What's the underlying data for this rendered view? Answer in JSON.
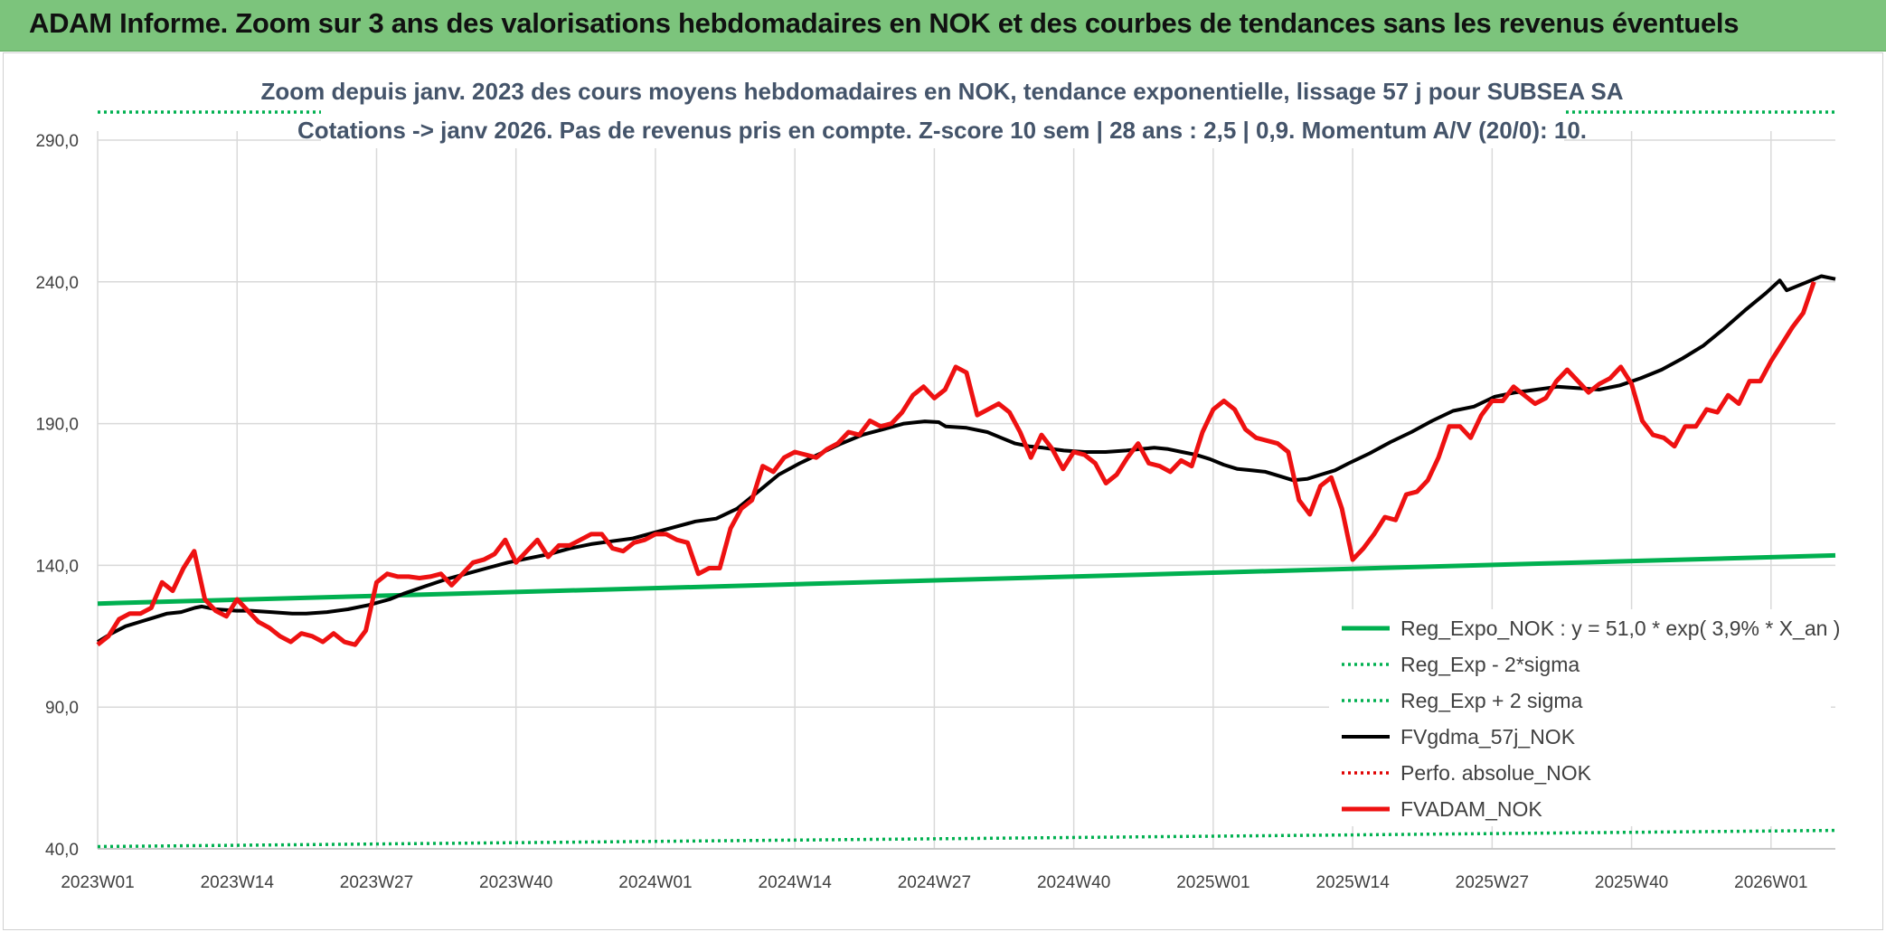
{
  "header": {
    "title": "ADAM Informe. Zoom sur 3 ans des valorisations hebdomadaires en NOK et des courbes de tendances sans les revenus éventuels"
  },
  "chart_data": {
    "type": "line",
    "title_line1": "Zoom depuis janv. 2023 des cours moyens hebdomadaires en NOK, tendance exponentielle, lissage 57 j pour SUBSEA SA",
    "title_line2": "Cotations -> janv 2026. Pas de revenus pris en compte. Z-score 10 sem | 28 ans : 2,5 | 0,9. Momentum A/V (20/0): 10.",
    "ylim": [
      40,
      290
    ],
    "yticks": [
      "290,0",
      "240,0",
      "190,0",
      "140,0",
      "90,0",
      "40,0"
    ],
    "ytick_values": [
      290,
      240,
      190,
      140,
      90,
      40
    ],
    "xticks": [
      "2023W01",
      "2023W14",
      "2023W27",
      "2023W40",
      "2024W01",
      "2024W14",
      "2024W27",
      "2024W40",
      "2025W01",
      "2025W14",
      "2025W27",
      "2025W40",
      "2026W01"
    ],
    "x_count": 163,
    "grid": true,
    "legend_position": "bottom-right",
    "series": [
      {
        "name": "Reg_Expo_NOK : y = 51,0 * exp( 3,9% *  X_an )",
        "color": "#00b050",
        "style": "solid-thick",
        "points": [
          [
            0,
            126.5
          ],
          [
            162,
            143.5
          ]
        ]
      },
      {
        "name": "Reg_Exp - 2*sigma",
        "color": "#00b050",
        "style": "dotted",
        "points": [
          [
            0,
            40.8
          ],
          [
            162,
            46.5
          ]
        ]
      },
      {
        "name": "Reg_Exp + 2 sigma",
        "color": "#00b050",
        "style": "dotted",
        "points": [
          [
            0,
            300
          ],
          [
            162,
            300
          ]
        ]
      },
      {
        "name": "FVgdma_57j_NOK",
        "color": "#000000",
        "style": "solid",
        "points": [
          [
            0,
            113
          ],
          [
            2,
            116
          ],
          [
            4,
            118.5
          ],
          [
            6,
            120
          ],
          [
            8,
            121.5
          ],
          [
            10,
            123
          ],
          [
            12,
            123.5
          ],
          [
            14,
            125
          ],
          [
            15,
            125.5
          ],
          [
            17,
            124.5
          ],
          [
            20,
            124
          ],
          [
            22,
            124
          ],
          [
            25,
            123.5
          ],
          [
            28,
            123
          ],
          [
            30,
            123
          ],
          [
            33,
            123.5
          ],
          [
            36,
            124.5
          ],
          [
            39,
            126
          ],
          [
            42,
            128
          ],
          [
            44,
            130
          ],
          [
            47,
            132.5
          ],
          [
            50,
            135
          ],
          [
            53,
            137
          ],
          [
            56,
            139
          ],
          [
            59,
            141
          ],
          [
            62,
            142.5
          ],
          [
            65,
            144
          ],
          [
            68,
            146
          ],
          [
            71,
            147.5
          ],
          [
            74,
            148.5
          ],
          [
            77,
            149.5
          ],
          [
            80,
            151.5
          ],
          [
            83,
            153.5
          ],
          [
            86,
            155.5
          ],
          [
            89,
            156.5
          ],
          [
            92,
            160
          ],
          [
            95,
            166
          ],
          [
            98,
            172
          ],
          [
            101,
            176
          ],
          [
            104,
            179.5
          ],
          [
            107,
            183
          ],
          [
            110,
            186
          ],
          [
            113,
            188
          ],
          [
            116,
            190
          ],
          [
            119,
            190.8
          ],
          [
            121,
            190.5
          ],
          [
            122,
            189
          ],
          [
            125,
            188.5
          ],
          [
            128,
            187
          ],
          [
            130,
            185
          ],
          [
            132,
            183
          ],
          [
            134,
            182
          ],
          [
            136,
            181.5
          ],
          [
            139,
            180.5
          ],
          [
            142,
            180
          ],
          [
            145,
            180
          ],
          [
            148,
            180.5
          ],
          [
            150,
            181
          ],
          [
            152,
            181.5
          ],
          [
            154,
            181
          ],
          [
            156,
            180
          ],
          [
            158,
            179
          ],
          [
            160,
            177.5
          ],
          [
            162,
            175.5
          ],
          [
            164,
            174
          ],
          [
            166,
            173.5
          ],
          [
            168,
            173
          ],
          [
            170,
            171.5
          ],
          [
            172,
            170
          ],
          [
            174,
            170.5
          ],
          [
            176,
            172
          ],
          [
            178,
            173.5
          ],
          [
            180,
            176
          ],
          [
            183,
            179.5
          ],
          [
            186,
            183.5
          ],
          [
            189,
            187
          ],
          [
            192,
            191
          ],
          [
            195,
            194.5
          ],
          [
            198,
            196
          ],
          [
            201,
            199.5
          ],
          [
            204,
            201
          ],
          [
            207,
            202
          ],
          [
            210,
            203
          ],
          [
            213,
            202.5
          ],
          [
            216,
            202
          ],
          [
            219,
            203.5
          ],
          [
            222,
            206
          ],
          [
            225,
            209
          ],
          [
            228,
            213
          ],
          [
            231,
            217.5
          ],
          [
            234,
            223.5
          ],
          [
            237,
            230
          ],
          [
            240,
            236
          ],
          [
            242,
            240.5
          ],
          [
            243,
            237
          ],
          [
            246,
            240
          ],
          [
            248,
            242
          ],
          [
            250,
            241
          ]
        ]
      },
      {
        "name": "Perfo. absolue_NOK",
        "color": "#e00000",
        "style": "dotted",
        "points": []
      },
      {
        "name": "FVADAM_NOK",
        "color": "#ee1111",
        "style": "solid-thick",
        "points": [
          [
            0,
            112
          ],
          [
            1,
            115
          ],
          [
            2,
            121
          ],
          [
            3,
            123
          ],
          [
            4,
            123
          ],
          [
            5,
            125
          ],
          [
            6,
            134
          ],
          [
            7,
            131
          ],
          [
            8,
            139
          ],
          [
            9,
            145
          ],
          [
            10,
            128
          ],
          [
            11,
            124
          ],
          [
            12,
            122
          ],
          [
            13,
            128
          ],
          [
            14,
            124
          ],
          [
            15,
            120
          ],
          [
            16,
            118
          ],
          [
            17,
            115
          ],
          [
            18,
            113
          ],
          [
            19,
            116
          ],
          [
            20,
            115
          ],
          [
            21,
            113
          ],
          [
            22,
            116
          ],
          [
            23,
            113
          ],
          [
            24,
            112
          ],
          [
            25,
            117
          ],
          [
            26,
            134
          ],
          [
            27,
            137
          ],
          [
            28,
            136
          ],
          [
            29,
            136
          ],
          [
            30,
            135.5
          ],
          [
            31,
            136
          ],
          [
            32,
            137
          ],
          [
            33,
            133
          ],
          [
            34,
            137
          ],
          [
            35,
            141
          ],
          [
            36,
            142
          ],
          [
            37,
            144
          ],
          [
            38,
            149
          ],
          [
            39,
            141
          ],
          [
            40,
            145
          ],
          [
            41,
            149
          ],
          [
            42,
            143
          ],
          [
            43,
            147
          ],
          [
            44,
            147
          ],
          [
            45,
            149
          ],
          [
            46,
            151
          ],
          [
            47,
            151
          ],
          [
            48,
            146
          ],
          [
            49,
            145
          ],
          [
            50,
            148
          ],
          [
            51,
            149
          ],
          [
            52,
            151
          ],
          [
            53,
            151
          ],
          [
            54,
            149
          ],
          [
            55,
            148
          ],
          [
            56,
            137
          ],
          [
            57,
            139
          ],
          [
            58,
            139
          ],
          [
            59,
            153
          ],
          [
            60,
            160
          ],
          [
            61,
            163
          ],
          [
            62,
            175
          ],
          [
            63,
            173
          ],
          [
            64,
            178
          ],
          [
            65,
            180
          ],
          [
            66,
            179
          ],
          [
            67,
            178
          ],
          [
            68,
            181
          ],
          [
            69,
            183
          ],
          [
            70,
            187
          ],
          [
            71,
            186
          ],
          [
            72,
            191
          ],
          [
            73,
            189
          ],
          [
            74,
            190
          ],
          [
            75,
            194
          ],
          [
            76,
            200
          ],
          [
            77,
            203
          ],
          [
            78,
            199
          ],
          [
            79,
            202
          ],
          [
            80,
            210
          ],
          [
            81,
            208
          ],
          [
            82,
            193
          ],
          [
            83,
            195
          ],
          [
            84,
            197
          ],
          [
            85,
            194
          ],
          [
            86,
            187
          ],
          [
            87,
            178
          ],
          [
            88,
            186
          ],
          [
            89,
            181
          ],
          [
            90,
            174
          ],
          [
            91,
            180
          ],
          [
            92,
            179
          ],
          [
            93,
            176
          ],
          [
            94,
            169
          ],
          [
            95,
            172
          ],
          [
            96,
            178
          ],
          [
            97,
            183
          ],
          [
            98,
            176
          ],
          [
            99,
            175
          ],
          [
            100,
            173
          ],
          [
            101,
            177
          ],
          [
            102,
            175
          ],
          [
            103,
            187
          ],
          [
            104,
            195
          ],
          [
            105,
            198
          ],
          [
            106,
            195
          ],
          [
            107,
            188
          ],
          [
            108,
            185
          ],
          [
            109,
            184
          ],
          [
            110,
            183
          ],
          [
            111,
            180
          ],
          [
            112,
            163
          ],
          [
            113,
            158
          ],
          [
            114,
            168
          ],
          [
            115,
            171
          ],
          [
            116,
            160
          ],
          [
            117,
            142
          ],
          [
            118,
            146
          ],
          [
            119,
            151
          ],
          [
            120,
            157
          ],
          [
            121,
            156
          ],
          [
            122,
            165
          ],
          [
            123,
            166
          ],
          [
            124,
            170
          ],
          [
            125,
            178
          ],
          [
            126,
            189
          ],
          [
            127,
            189
          ],
          [
            128,
            185
          ],
          [
            129,
            193
          ],
          [
            130,
            198
          ],
          [
            131,
            198
          ],
          [
            132,
            203
          ],
          [
            133,
            200
          ],
          [
            134,
            197
          ],
          [
            135,
            199
          ],
          [
            136,
            205
          ],
          [
            137,
            209
          ],
          [
            138,
            205
          ],
          [
            139,
            201
          ],
          [
            140,
            204
          ],
          [
            141,
            206
          ],
          [
            142,
            210
          ],
          [
            143,
            204
          ],
          [
            144,
            191
          ],
          [
            145,
            186
          ],
          [
            146,
            185
          ],
          [
            147,
            182
          ],
          [
            148,
            189
          ],
          [
            149,
            189
          ],
          [
            150,
            195
          ],
          [
            151,
            194
          ],
          [
            152,
            200
          ],
          [
            153,
            197
          ],
          [
            154,
            205
          ],
          [
            155,
            205
          ],
          [
            156,
            212
          ],
          [
            157,
            218
          ],
          [
            158,
            224
          ],
          [
            159,
            229
          ],
          [
            160,
            240
          ]
        ]
      }
    ]
  }
}
